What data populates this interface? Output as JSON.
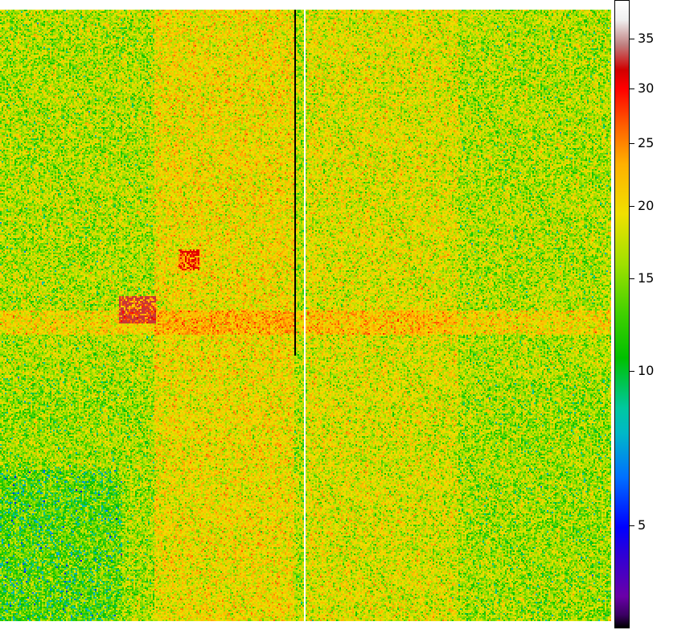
{
  "chart_data": {
    "type": "heatmap",
    "title": "",
    "xlabel": "",
    "ylabel": "",
    "colorbar": {
      "ticks": [
        "5",
        "10",
        "15",
        "20",
        "25",
        "30",
        "35"
      ],
      "tick_values": [
        5,
        10,
        15,
        20,
        25,
        30,
        35
      ],
      "range": [
        3,
        38
      ],
      "scale": "log",
      "colormap": "nipy_spectral"
    },
    "background_level": 14,
    "features": [
      {
        "kind": "hot-square",
        "value": 28
      },
      {
        "kind": "hot-cluster",
        "value": 30
      },
      {
        "kind": "dead-column",
        "value": 3
      },
      {
        "kind": "hot-column",
        "value": 38
      }
    ]
  }
}
